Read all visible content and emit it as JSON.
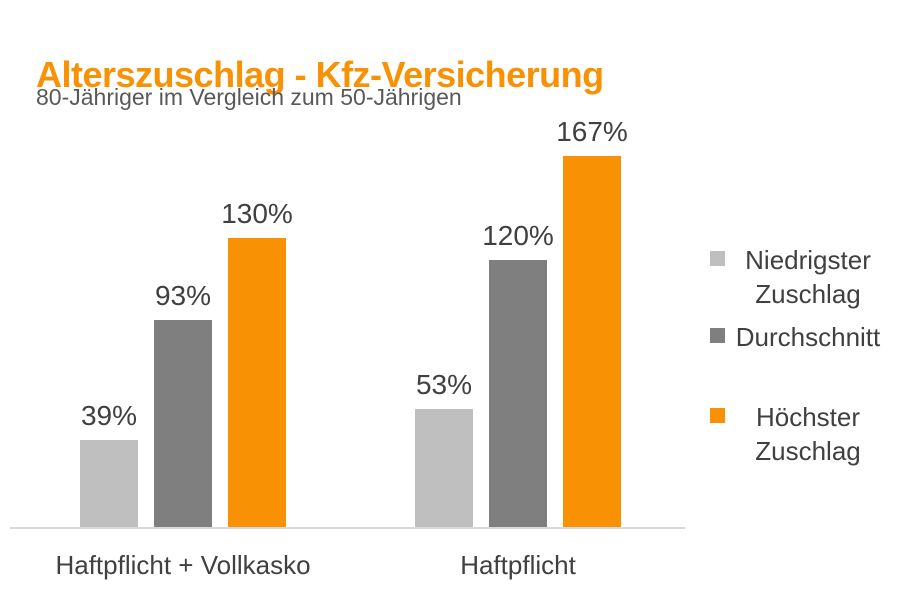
{
  "header": {
    "title": "Alterszuschlag - Kfz-Versicherung",
    "subtitle": "80-Jähriger im Vergleich zum 50-Jährigen"
  },
  "colors": {
    "accent_orange": "#F99104",
    "light_gray": "#BFBFBF",
    "dark_gray": "#7F7F7F",
    "label_text": "#404040",
    "subtitle_text": "#595959",
    "axis_line": "#D9D9D9"
  },
  "chart_data": {
    "type": "bar",
    "title": "Alterszuschlag - Kfz-Versicherung",
    "subtitle": "80-Jähriger im Vergleich zum 50-Jährigen",
    "categories": [
      "Haftpflicht + Vollkasko",
      "Haftpflicht"
    ],
    "series": [
      {
        "name": "Niedrigster Zuschlag",
        "legend_lines": [
          "Niedrigster",
          "Zuschlag"
        ],
        "color": "#BFBFBF",
        "values": [
          39,
          53
        ],
        "labels": [
          "39%",
          "53%"
        ]
      },
      {
        "name": "Durchschnitt",
        "legend_lines": [
          "Durchschnitt"
        ],
        "color": "#7F7F7F",
        "values": [
          93,
          120
        ],
        "labels": [
          "93%",
          "120%"
        ]
      },
      {
        "name": "Höchster Zuschlag",
        "legend_lines": [
          "Höchster",
          "Zuschlag"
        ],
        "color": "#F99104",
        "values": [
          130,
          167
        ],
        "labels": [
          "130%",
          "167%"
        ]
      }
    ],
    "value_format": "percent",
    "ylim": [
      0,
      180
    ],
    "grid": false,
    "data_labels": true,
    "legend_position": "right",
    "xlabel": "",
    "ylabel": ""
  }
}
